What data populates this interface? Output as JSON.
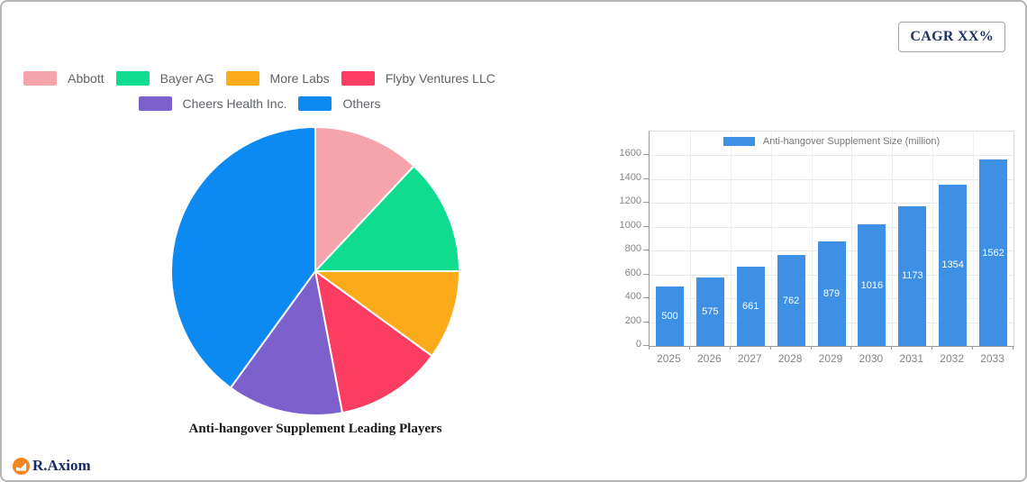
{
  "page": {
    "cagr_label": "CAGR XX%",
    "brand_name": "R.Axiom"
  },
  "chart_data": [
    {
      "type": "pie",
      "title": "Anti-hangover Supplement Leading Players",
      "categories": [
        "Abbott",
        "Bayer AG",
        "More Labs",
        "Flyby Ventures LLC",
        "Cheers Health Inc.",
        "Others"
      ],
      "values": [
        12,
        13,
        10,
        12,
        13,
        40
      ],
      "colors": [
        "#f7a3ab",
        "#10dc90",
        "#fbab19",
        "#fa3d60",
        "#7c60cc",
        "#0d8af2"
      ],
      "unit": "percent-of-circle",
      "start_angle_deg_from_top": 0,
      "direction": "clockwise",
      "slice_border_color": "#ffffff",
      "legend_position": "top",
      "legend_rows": [
        4,
        2
      ]
    },
    {
      "type": "bar",
      "legend_label": "Anti-hangover Supplement Size (million)",
      "categories": [
        "2025",
        "2026",
        "2027",
        "2028",
        "2029",
        "2030",
        "2031",
        "2032",
        "2033"
      ],
      "values": [
        500,
        575,
        661,
        762,
        879,
        1016,
        1173,
        1354,
        1562
      ],
      "bar_color": "#3e90e5",
      "value_label_color": "#ffffff",
      "value_label_position": "inside-center",
      "ylim": [
        0,
        1600
      ],
      "yticks": [
        0,
        200,
        400,
        600,
        800,
        1000,
        1200,
        1400,
        1600
      ],
      "grid": true,
      "legend_position": "top-center"
    }
  ]
}
